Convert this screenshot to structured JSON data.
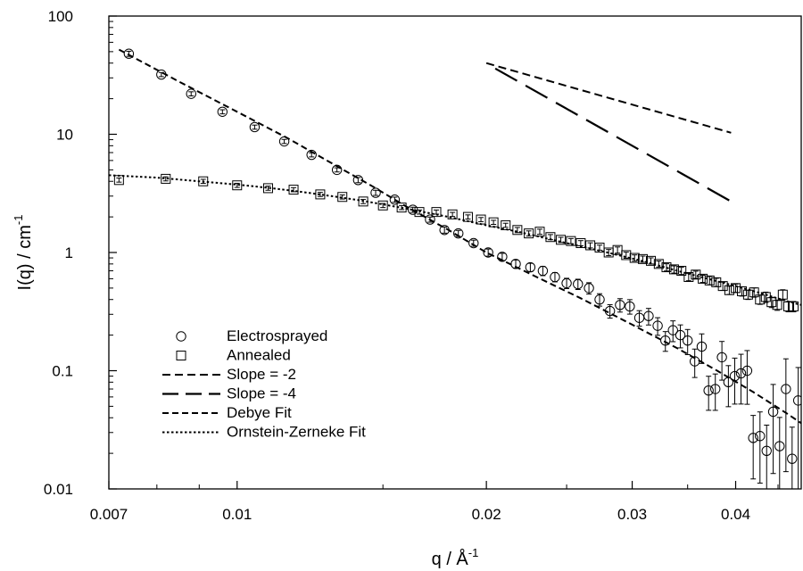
{
  "chart_data": {
    "type": "scatter",
    "title": "",
    "xlabel": "q / Å",
    "xlabel_sup": "-1",
    "ylabel": "I(q) / cm",
    "ylabel_sup": "-1",
    "xscale": "log",
    "yscale": "log",
    "xlim": [
      0.007,
      0.048
    ],
    "ylim": [
      0.01,
      100
    ],
    "x_ticks": [
      0.007,
      0.01,
      0.02,
      0.03,
      0.04
    ],
    "x_tick_labels": [
      "0.007",
      "0.01",
      "0.02",
      "0.03",
      "0.04"
    ],
    "y_ticks": [
      0.01,
      0.1,
      1,
      10,
      100
    ],
    "y_tick_labels": [
      "0.01",
      "0.1",
      "1",
      "10",
      "100"
    ],
    "grid": false,
    "legend_position": "bottom-left",
    "legend": [
      {
        "label": "Electrosprayed",
        "marker": "circle"
      },
      {
        "label": "Annealed",
        "marker": "square"
      },
      {
        "label": "Slope = -2",
        "line": "short-dash"
      },
      {
        "label": "Slope = -4",
        "line": "long-dash"
      },
      {
        "label": "Debye Fit",
        "line": "dash"
      },
      {
        "label": "Ornstein-Zerneke Fit",
        "line": "dot"
      }
    ],
    "series": [
      {
        "name": "Electrosprayed",
        "marker": "circle",
        "x": [
          0.0074,
          0.0081,
          0.0088,
          0.0096,
          0.0105,
          0.0114,
          0.0123,
          0.0132,
          0.014,
          0.0147,
          0.0155,
          0.0163,
          0.0171,
          0.0178,
          0.0185,
          0.0193,
          0.0201,
          0.0209,
          0.0217,
          0.0226,
          0.0234,
          0.0242,
          0.025,
          0.0258,
          0.0266,
          0.0274,
          0.0282,
          0.029,
          0.0298,
          0.0306,
          0.0314,
          0.0322,
          0.0329,
          0.0336,
          0.0343,
          0.035,
          0.0357,
          0.0364,
          0.0371,
          0.0378,
          0.0385,
          0.0392,
          0.0399,
          0.0406,
          0.0413,
          0.042,
          0.0428,
          0.0436,
          0.0444,
          0.0452,
          0.046,
          0.0468,
          0.0476
        ],
        "y": [
          48,
          32,
          22,
          15.5,
          11.5,
          8.7,
          6.7,
          5.0,
          4.1,
          3.2,
          2.8,
          2.3,
          1.9,
          1.55,
          1.45,
          1.2,
          1.0,
          0.92,
          0.8,
          0.75,
          0.7,
          0.62,
          0.55,
          0.54,
          0.5,
          0.4,
          0.32,
          0.36,
          0.35,
          0.28,
          0.29,
          0.24,
          0.18,
          0.22,
          0.2,
          0.18,
          0.12,
          0.16,
          0.068,
          0.07,
          0.13,
          0.08,
          0.09,
          0.095,
          0.1,
          0.027,
          0.028,
          0.021,
          0.045,
          0.023,
          0.07,
          0.018,
          0.056
        ],
        "err": [
          0.05,
          0.04,
          0.04,
          0.04,
          0.04,
          0.04,
          0.04,
          0.04,
          0.05,
          0.05,
          0.05,
          0.05,
          0.05,
          0.06,
          0.06,
          0.06,
          0.07,
          0.07,
          0.08,
          0.08,
          0.09,
          0.09,
          0.1,
          0.1,
          0.11,
          0.12,
          0.13,
          0.13,
          0.14,
          0.15,
          0.16,
          0.17,
          0.19,
          0.2,
          0.22,
          0.24,
          0.27,
          0.28,
          0.32,
          0.34,
          0.36,
          0.38,
          0.42,
          0.45,
          0.48,
          0.55,
          0.6,
          0.65,
          0.7,
          0.75,
          0.8,
          0.85,
          0.9
        ]
      },
      {
        "name": "Annealed",
        "marker": "square",
        "x": [
          0.0072,
          0.0082,
          0.0091,
          0.01,
          0.0109,
          0.0117,
          0.0126,
          0.0134,
          0.0142,
          0.015,
          0.0158,
          0.0166,
          0.0174,
          0.0182,
          0.019,
          0.0197,
          0.0204,
          0.0211,
          0.0218,
          0.0225,
          0.0232,
          0.0239,
          0.0246,
          0.0253,
          0.026,
          0.0267,
          0.0274,
          0.0281,
          0.0288,
          0.0295,
          0.0302,
          0.0309,
          0.0316,
          0.0323,
          0.033,
          0.0337,
          0.0344,
          0.0351,
          0.0358,
          0.0365,
          0.0372,
          0.0379,
          0.0386,
          0.0393,
          0.04,
          0.0407,
          0.0414,
          0.0421,
          0.0428,
          0.0435,
          0.0442,
          0.0449,
          0.0456,
          0.0463,
          0.047
        ],
        "y": [
          4.1,
          4.2,
          4.0,
          3.7,
          3.5,
          3.4,
          3.1,
          2.95,
          2.7,
          2.5,
          2.4,
          2.2,
          2.2,
          2.1,
          2.0,
          1.9,
          1.8,
          1.7,
          1.55,
          1.45,
          1.5,
          1.35,
          1.28,
          1.25,
          1.2,
          1.15,
          1.1,
          1.0,
          1.05,
          0.95,
          0.9,
          0.88,
          0.85,
          0.8,
          0.75,
          0.72,
          0.7,
          0.62,
          0.65,
          0.6,
          0.58,
          0.56,
          0.52,
          0.48,
          0.5,
          0.47,
          0.44,
          0.46,
          0.4,
          0.42,
          0.38,
          0.36,
          0.44,
          0.35,
          0.35
        ],
        "err": [
          0.04,
          0.04,
          0.04,
          0.04,
          0.04,
          0.04,
          0.04,
          0.04,
          0.04,
          0.04,
          0.04,
          0.04,
          0.04,
          0.04,
          0.04,
          0.04,
          0.04,
          0.04,
          0.05,
          0.05,
          0.05,
          0.05,
          0.05,
          0.05,
          0.05,
          0.05,
          0.05,
          0.06,
          0.06,
          0.06,
          0.06,
          0.06,
          0.06,
          0.06,
          0.07,
          0.07,
          0.07,
          0.07,
          0.07,
          0.07,
          0.08,
          0.08,
          0.08,
          0.08,
          0.08,
          0.09,
          0.09,
          0.09,
          0.09,
          0.1,
          0.1,
          0.1,
          0.1,
          0.1,
          0.1
        ]
      },
      {
        "name": "Debye Fit",
        "line": "dash",
        "x": [
          0.0072,
          0.0085,
          0.01,
          0.0115,
          0.013,
          0.0145,
          0.016,
          0.018,
          0.02,
          0.023,
          0.026,
          0.03,
          0.034,
          0.038,
          0.042,
          0.046,
          0.048
        ],
        "y": [
          52,
          28,
          15.5,
          9.3,
          5.7,
          3.7,
          2.45,
          1.55,
          1.0,
          0.62,
          0.41,
          0.245,
          0.155,
          0.1,
          0.066,
          0.044,
          0.036
        ]
      },
      {
        "name": "Ornstein-Zerneke Fit",
        "line": "dot",
        "x": [
          0.007,
          0.008,
          0.009,
          0.01,
          0.011,
          0.012,
          0.013,
          0.014,
          0.015,
          0.016,
          0.018,
          0.02,
          0.022,
          0.025,
          0.028,
          0.031,
          0.034,
          0.037,
          0.04,
          0.043,
          0.046,
          0.048
        ],
        "y": [
          4.5,
          4.3,
          4.0,
          3.75,
          3.5,
          3.25,
          3.0,
          2.78,
          2.55,
          2.35,
          2.0,
          1.7,
          1.48,
          1.2,
          1.0,
          0.84,
          0.7,
          0.6,
          0.52,
          0.45,
          0.39,
          0.36
        ]
      },
      {
        "name": "Slope = -2",
        "line": "short-dash",
        "x": [
          0.02,
          0.0395
        ],
        "y": [
          40,
          10.3
        ]
      },
      {
        "name": "Slope = -4",
        "line": "long-dash",
        "x": [
          0.0205,
          0.0395
        ],
        "y": [
          36,
          2.7
        ]
      }
    ]
  }
}
